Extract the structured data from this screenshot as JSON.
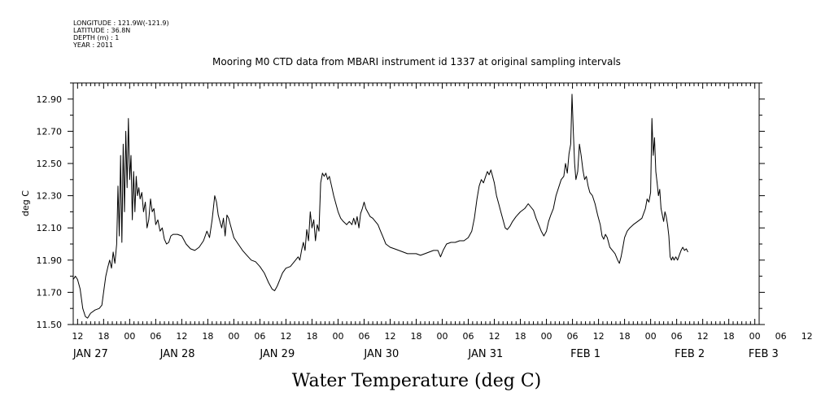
{
  "meta": {
    "lines": [
      "LONGITUDE : 121.9W(-121.9)",
      "LATITUDE : 36.8N",
      "DEPTH (m) : 1",
      "YEAR : 2011"
    ]
  },
  "chart_data": {
    "type": "line",
    "title": "Mooring M0 CTD data from MBARI instrument id 1337 at original sampling intervals",
    "xlabel": "Water Temperature (deg C)",
    "ylabel": "deg C",
    "ylim": [
      11.5,
      13.0
    ],
    "yticks": [
      "11.50",
      "11.70",
      "11.90",
      "12.10",
      "12.30",
      "12.50",
      "12.70",
      "12.90"
    ],
    "x_units": "hours since Jan 27 00:00, 2011",
    "xlim": [
      11,
      169
    ],
    "hour_ticks": [
      {
        "x": 12,
        "label": "12"
      },
      {
        "x": 18,
        "label": "18"
      },
      {
        "x": 24,
        "label": "00"
      },
      {
        "x": 30,
        "label": "06"
      },
      {
        "x": 36,
        "label": "12"
      },
      {
        "x": 42,
        "label": "18"
      },
      {
        "x": 48,
        "label": "00"
      },
      {
        "x": 54,
        "label": "06"
      },
      {
        "x": 60,
        "label": "12"
      },
      {
        "x": 66,
        "label": "18"
      },
      {
        "x": 72,
        "label": "00"
      },
      {
        "x": 78,
        "label": "06"
      },
      {
        "x": 84,
        "label": "12"
      },
      {
        "x": 90,
        "label": "18"
      },
      {
        "x": 96,
        "label": "00"
      },
      {
        "x": 102,
        "label": "06"
      },
      {
        "x": 108,
        "label": "12"
      },
      {
        "x": 114,
        "label": "18"
      },
      {
        "x": 120,
        "label": "00"
      },
      {
        "x": 126,
        "label": "06"
      },
      {
        "x": 132,
        "label": "12"
      },
      {
        "x": 138,
        "label": "18"
      },
      {
        "x": 144,
        "label": "00"
      },
      {
        "x": 150,
        "label": "06"
      },
      {
        "x": 156,
        "label": "12"
      },
      {
        "x": 162,
        "label": "18"
      },
      {
        "x": 168,
        "label": "00"
      },
      {
        "x": 174,
        "label": "06"
      },
      {
        "x": 180,
        "label": "12"
      }
    ],
    "date_labels": [
      {
        "x": 15,
        "label": "JAN 27"
      },
      {
        "x": 35,
        "label": "JAN 28"
      },
      {
        "x": 58,
        "label": "JAN 29"
      },
      {
        "x": 82,
        "label": "JAN 30"
      },
      {
        "x": 106,
        "label": "JAN 31"
      },
      {
        "x": 129,
        "label": "FEB  1"
      },
      {
        "x": 153,
        "label": "FEB  2"
      },
      {
        "x": 170,
        "label": "FEB  3"
      }
    ],
    "series": [
      {
        "color": "#000000",
        "points": [
          [
            11.0,
            11.78
          ],
          [
            11.5,
            11.8
          ],
          [
            12.0,
            11.78
          ],
          [
            12.6,
            11.72
          ],
          [
            13.2,
            11.6
          ],
          [
            13.8,
            11.55
          ],
          [
            14.3,
            11.54
          ],
          [
            15.0,
            11.57
          ],
          [
            16.0,
            11.59
          ],
          [
            17.0,
            11.6
          ],
          [
            17.6,
            11.62
          ],
          [
            18.0,
            11.7
          ],
          [
            18.5,
            11.8
          ],
          [
            19.0,
            11.86
          ],
          [
            19.4,
            11.9
          ],
          [
            19.8,
            11.85
          ],
          [
            20.2,
            11.95
          ],
          [
            20.6,
            11.88
          ],
          [
            21.0,
            12.0
          ],
          [
            21.3,
            12.36
          ],
          [
            21.6,
            12.05
          ],
          [
            21.9,
            12.55
          ],
          [
            22.2,
            12.01
          ],
          [
            22.5,
            12.62
          ],
          [
            22.8,
            12.2
          ],
          [
            23.1,
            12.7
          ],
          [
            23.4,
            12.35
          ],
          [
            23.7,
            12.78
          ],
          [
            24.0,
            12.4
          ],
          [
            24.3,
            12.55
          ],
          [
            24.6,
            12.15
          ],
          [
            24.9,
            12.45
          ],
          [
            25.2,
            12.2
          ],
          [
            25.5,
            12.42
          ],
          [
            25.8,
            12.3
          ],
          [
            26.1,
            12.35
          ],
          [
            26.4,
            12.28
          ],
          [
            26.8,
            12.32
          ],
          [
            27.2,
            12.2
          ],
          [
            27.6,
            12.26
          ],
          [
            28.0,
            12.1
          ],
          [
            28.4,
            12.15
          ],
          [
            28.8,
            12.28
          ],
          [
            29.2,
            12.2
          ],
          [
            29.6,
            12.22
          ],
          [
            30.0,
            12.12
          ],
          [
            30.5,
            12.15
          ],
          [
            31.0,
            12.08
          ],
          [
            31.5,
            12.1
          ],
          [
            32.0,
            12.03
          ],
          [
            32.5,
            12.0
          ],
          [
            33.0,
            12.01
          ],
          [
            33.5,
            12.05
          ],
          [
            34.0,
            12.06
          ],
          [
            35.0,
            12.06
          ],
          [
            36.0,
            12.05
          ],
          [
            37.0,
            12.0
          ],
          [
            38.0,
            11.97
          ],
          [
            39.0,
            11.96
          ],
          [
            40.0,
            11.98
          ],
          [
            41.0,
            12.02
          ],
          [
            41.8,
            12.08
          ],
          [
            42.4,
            12.04
          ],
          [
            43.0,
            12.15
          ],
          [
            43.6,
            12.3
          ],
          [
            44.0,
            12.26
          ],
          [
            44.4,
            12.18
          ],
          [
            44.8,
            12.14
          ],
          [
            45.2,
            12.1
          ],
          [
            45.6,
            12.16
          ],
          [
            46.0,
            12.05
          ],
          [
            46.4,
            12.18
          ],
          [
            46.8,
            12.16
          ],
          [
            47.2,
            12.12
          ],
          [
            47.6,
            12.08
          ],
          [
            48.0,
            12.04
          ],
          [
            49.0,
            12.0
          ],
          [
            50.0,
            11.96
          ],
          [
            51.0,
            11.93
          ],
          [
            52.0,
            11.9
          ],
          [
            53.0,
            11.89
          ],
          [
            54.0,
            11.86
          ],
          [
            55.0,
            11.82
          ],
          [
            56.0,
            11.76
          ],
          [
            56.8,
            11.72
          ],
          [
            57.4,
            11.71
          ],
          [
            58.0,
            11.74
          ],
          [
            58.6,
            11.78
          ],
          [
            59.2,
            11.82
          ],
          [
            60.0,
            11.85
          ],
          [
            61.0,
            11.86
          ],
          [
            61.6,
            11.88
          ],
          [
            62.2,
            11.9
          ],
          [
            62.8,
            11.92
          ],
          [
            63.2,
            11.9
          ],
          [
            63.6,
            11.96
          ],
          [
            64.0,
            12.01
          ],
          [
            64.4,
            11.96
          ],
          [
            64.8,
            12.09
          ],
          [
            65.2,
            12.02
          ],
          [
            65.6,
            12.2
          ],
          [
            66.0,
            12.1
          ],
          [
            66.4,
            12.15
          ],
          [
            66.8,
            12.02
          ],
          [
            67.2,
            12.12
          ],
          [
            67.6,
            12.08
          ],
          [
            68.0,
            12.38
          ],
          [
            68.4,
            12.44
          ],
          [
            68.8,
            12.42
          ],
          [
            69.2,
            12.44
          ],
          [
            69.6,
            12.4
          ],
          [
            70.0,
            12.42
          ],
          [
            70.5,
            12.36
          ],
          [
            71.0,
            12.3
          ],
          [
            71.5,
            12.25
          ],
          [
            72.0,
            12.2
          ],
          [
            72.6,
            12.16
          ],
          [
            73.2,
            12.14
          ],
          [
            74.0,
            12.12
          ],
          [
            74.6,
            12.14
          ],
          [
            75.2,
            12.12
          ],
          [
            75.6,
            12.16
          ],
          [
            76.0,
            12.12
          ],
          [
            76.4,
            12.17
          ],
          [
            76.8,
            12.1
          ],
          [
            77.2,
            12.19
          ],
          [
            77.6,
            12.22
          ],
          [
            78.0,
            12.26
          ],
          [
            78.4,
            12.22
          ],
          [
            78.8,
            12.2
          ],
          [
            79.4,
            12.17
          ],
          [
            80.0,
            12.16
          ],
          [
            80.6,
            12.14
          ],
          [
            81.2,
            12.12
          ],
          [
            81.8,
            12.08
          ],
          [
            82.4,
            12.04
          ],
          [
            83.0,
            12.0
          ],
          [
            84.0,
            11.98
          ],
          [
            85.0,
            11.97
          ],
          [
            86.0,
            11.96
          ],
          [
            87.0,
            11.95
          ],
          [
            88.0,
            11.94
          ],
          [
            89.0,
            11.94
          ],
          [
            90.0,
            11.94
          ],
          [
            91.0,
            11.93
          ],
          [
            92.0,
            11.94
          ],
          [
            93.0,
            11.95
          ],
          [
            94.0,
            11.96
          ],
          [
            95.0,
            11.96
          ],
          [
            95.6,
            11.92
          ],
          [
            96.2,
            11.96
          ],
          [
            97.0,
            12.0
          ],
          [
            98.0,
            12.01
          ],
          [
            99.0,
            12.01
          ],
          [
            100.0,
            12.02
          ],
          [
            101.0,
            12.02
          ],
          [
            102.0,
            12.04
          ],
          [
            102.8,
            12.08
          ],
          [
            103.4,
            12.16
          ],
          [
            104.0,
            12.28
          ],
          [
            104.5,
            12.36
          ],
          [
            105.0,
            12.4
          ],
          [
            105.5,
            12.38
          ],
          [
            106.0,
            12.42
          ],
          [
            106.4,
            12.45
          ],
          [
            106.8,
            12.43
          ],
          [
            107.2,
            12.46
          ],
          [
            107.6,
            12.42
          ],
          [
            108.0,
            12.38
          ],
          [
            108.5,
            12.3
          ],
          [
            109.0,
            12.25
          ],
          [
            109.5,
            12.2
          ],
          [
            110.0,
            12.15
          ],
          [
            110.5,
            12.1
          ],
          [
            111.0,
            12.09
          ],
          [
            111.6,
            12.11
          ],
          [
            112.2,
            12.14
          ],
          [
            113.0,
            12.17
          ],
          [
            114.0,
            12.2
          ],
          [
            115.0,
            12.22
          ],
          [
            115.8,
            12.25
          ],
          [
            116.4,
            12.23
          ],
          [
            117.0,
            12.21
          ],
          [
            117.6,
            12.16
          ],
          [
            118.2,
            12.12
          ],
          [
            118.8,
            12.08
          ],
          [
            119.4,
            12.05
          ],
          [
            120.0,
            12.08
          ],
          [
            120.5,
            12.14
          ],
          [
            121.0,
            12.18
          ],
          [
            121.6,
            12.22
          ],
          [
            122.2,
            12.3
          ],
          [
            122.8,
            12.35
          ],
          [
            123.4,
            12.4
          ],
          [
            124.0,
            12.42
          ],
          [
            124.4,
            12.5
          ],
          [
            124.8,
            12.44
          ],
          [
            125.2,
            12.56
          ],
          [
            125.6,
            12.62
          ],
          [
            125.9,
            12.93
          ],
          [
            126.2,
            12.7
          ],
          [
            126.5,
            12.5
          ],
          [
            126.8,
            12.4
          ],
          [
            127.2,
            12.45
          ],
          [
            127.6,
            12.62
          ],
          [
            128.0,
            12.55
          ],
          [
            128.4,
            12.46
          ],
          [
            128.8,
            12.4
          ],
          [
            129.2,
            12.42
          ],
          [
            129.6,
            12.36
          ],
          [
            130.0,
            12.32
          ],
          [
            130.6,
            12.3
          ],
          [
            131.2,
            12.25
          ],
          [
            131.8,
            12.18
          ],
          [
            132.4,
            12.12
          ],
          [
            132.8,
            12.05
          ],
          [
            133.2,
            12.03
          ],
          [
            133.6,
            12.06
          ],
          [
            134.0,
            12.04
          ],
          [
            134.6,
            11.98
          ],
          [
            135.2,
            11.96
          ],
          [
            135.8,
            11.94
          ],
          [
            136.4,
            11.9
          ],
          [
            136.8,
            11.88
          ],
          [
            137.2,
            11.92
          ],
          [
            137.6,
            11.98
          ],
          [
            138.0,
            12.04
          ],
          [
            138.6,
            12.08
          ],
          [
            139.2,
            12.1
          ],
          [
            140.0,
            12.12
          ],
          [
            141.0,
            12.14
          ],
          [
            142.0,
            12.16
          ],
          [
            142.8,
            12.22
          ],
          [
            143.2,
            12.28
          ],
          [
            143.6,
            12.26
          ],
          [
            144.0,
            12.32
          ],
          [
            144.3,
            12.78
          ],
          [
            144.6,
            12.55
          ],
          [
            144.9,
            12.66
          ],
          [
            145.2,
            12.45
          ],
          [
            145.5,
            12.38
          ],
          [
            145.8,
            12.3
          ],
          [
            146.1,
            12.34
          ],
          [
            146.4,
            12.22
          ],
          [
            146.7,
            12.18
          ],
          [
            147.0,
            12.14
          ],
          [
            147.3,
            12.2
          ],
          [
            147.6,
            12.17
          ],
          [
            147.9,
            12.12
          ],
          [
            148.2,
            12.05
          ],
          [
            148.5,
            11.92
          ],
          [
            148.8,
            11.9
          ],
          [
            149.1,
            11.92
          ],
          [
            149.4,
            11.9
          ],
          [
            149.8,
            11.92
          ],
          [
            150.2,
            11.9
          ],
          [
            150.6,
            11.93
          ],
          [
            151.0,
            11.96
          ],
          [
            151.4,
            11.98
          ],
          [
            151.8,
            11.96
          ],
          [
            152.2,
            11.97
          ],
          [
            152.6,
            11.95
          ]
        ]
      }
    ]
  }
}
